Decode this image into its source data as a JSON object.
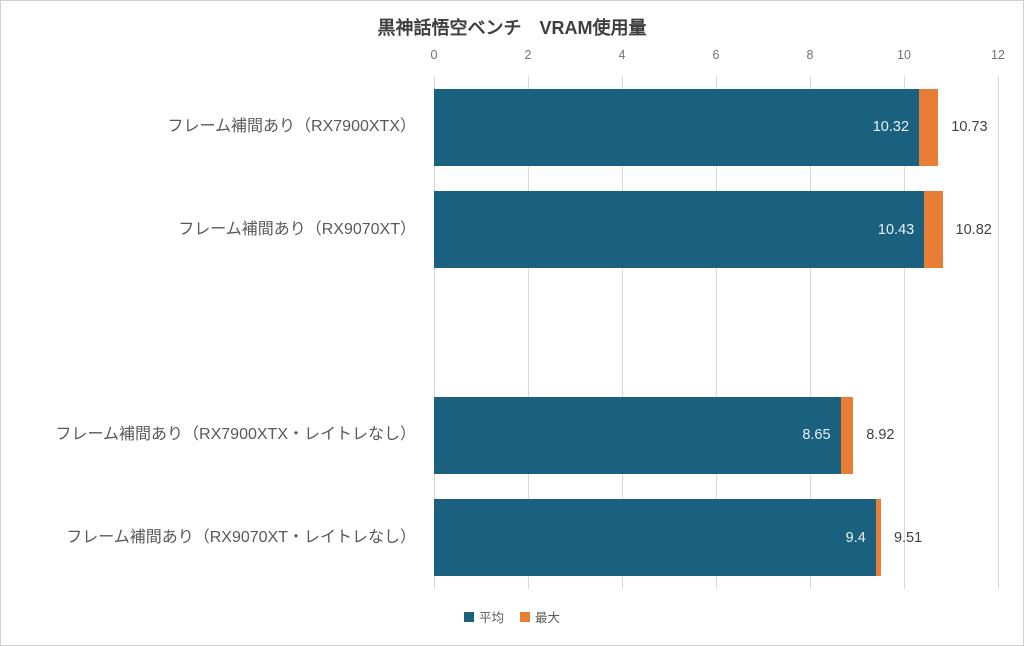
{
  "chart_data": {
    "type": "bar",
    "orientation": "horizontal",
    "stacked": true,
    "title": "黒神話悟空ベンチ　VRAM使用量",
    "categories": [
      "フレーム補間あり（RX7900XTX）",
      "フレーム補間あり（RX9070XT）",
      "フレーム補間あり（RX7900XTX・レイトレなし）",
      "フレーム補間あり（RX9070XT・レイトレなし）"
    ],
    "series": [
      {
        "name": "平均",
        "color": "#1A6180",
        "values": [
          10.32,
          10.43,
          8.65,
          9.4
        ]
      },
      {
        "name": "最大",
        "color": "#E87D35",
        "values": [
          10.73,
          10.82,
          8.92,
          9.51
        ]
      }
    ],
    "xlabel": "",
    "ylabel": "",
    "xlim": [
      0,
      12
    ],
    "ticks": [
      0,
      2,
      4,
      6,
      8,
      10,
      12
    ],
    "grid": true,
    "legend_position": "bottom-center",
    "row_slots": [
      0,
      1,
      3,
      4
    ],
    "slot_count": 5,
    "value_labels": {
      "average": "inside-bar-end",
      "max": "outside-bar-end"
    }
  },
  "palette": {
    "frame_border": "#d0d0d0",
    "grid": "#d9d9d9",
    "title_text": "#3f3f3f",
    "tick_text": "#737373",
    "category_text": "#595959",
    "value_inside": "#e9f1f5",
    "value_outside": "#404040",
    "legend_text": "#595959"
  }
}
